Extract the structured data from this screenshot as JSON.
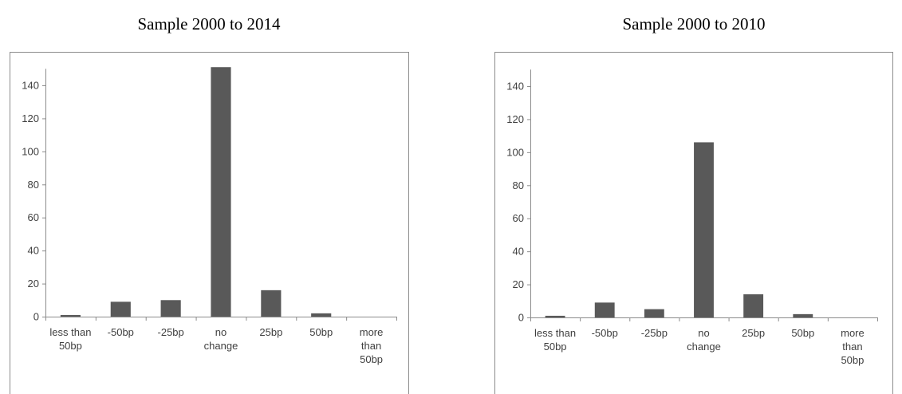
{
  "chart_data": [
    {
      "type": "bar",
      "title": "Sample 2000 to 2014",
      "xlabel": "",
      "ylabel": "",
      "ylim": [
        0,
        150
      ],
      "yticks": [
        0,
        20,
        40,
        60,
        80,
        100,
        120,
        140
      ],
      "grid": false,
      "categories": [
        [
          "less than",
          "50bp"
        ],
        [
          "-50bp"
        ],
        [
          "-25bp"
        ],
        [
          "no",
          "change"
        ],
        [
          "25bp"
        ],
        [
          "50bp"
        ],
        [
          "more",
          "than",
          "50bp"
        ]
      ],
      "values": [
        1,
        9,
        10,
        151,
        16,
        2,
        0
      ],
      "bar_color": "#595959"
    },
    {
      "type": "bar",
      "title": "Sample 2000 to 2010",
      "xlabel": "",
      "ylabel": "",
      "ylim": [
        0,
        150
      ],
      "yticks": [
        0,
        20,
        40,
        60,
        80,
        100,
        120,
        140
      ],
      "grid": false,
      "categories": [
        [
          "less than",
          "50bp"
        ],
        [
          "-50bp"
        ],
        [
          "-25bp"
        ],
        [
          "no",
          "change"
        ],
        [
          "25bp"
        ],
        [
          "50bp"
        ],
        [
          "more",
          "than",
          "50bp"
        ]
      ],
      "values": [
        1,
        9,
        5,
        106,
        14,
        2,
        0
      ],
      "bar_color": "#595959"
    }
  ]
}
